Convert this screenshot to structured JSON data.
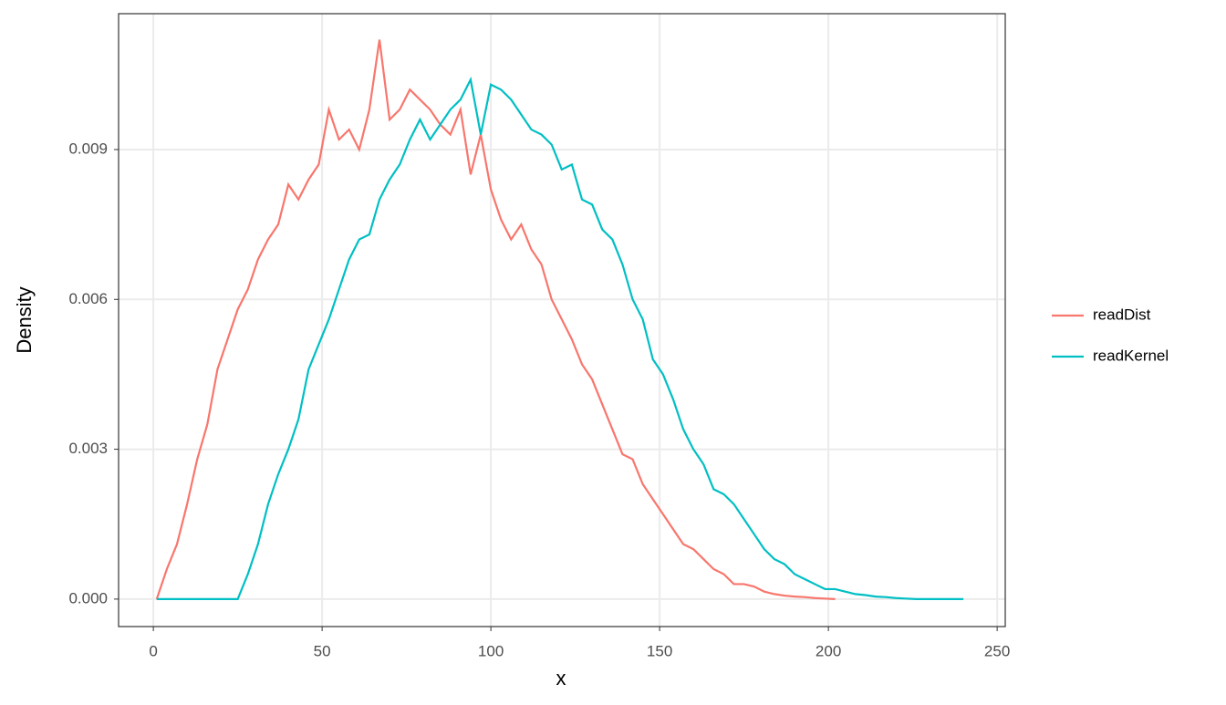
{
  "chart_data": {
    "type": "line",
    "x_label": "x",
    "y_label": "Density",
    "x": [
      1,
      4,
      7,
      10,
      13,
      16,
      19,
      22,
      25,
      28,
      31,
      34,
      37,
      40,
      43,
      46,
      49,
      52,
      55,
      58,
      61,
      64,
      67,
      70,
      73,
      76,
      79,
      82,
      85,
      88,
      91,
      94,
      97,
      100,
      103,
      106,
      109,
      112,
      115,
      118,
      121,
      124,
      127,
      130,
      133,
      136,
      139,
      142,
      145,
      148,
      151,
      154,
      157,
      160,
      163,
      166,
      169,
      172,
      175,
      178,
      181,
      184,
      187,
      190,
      193,
      196,
      199,
      202,
      205,
      208,
      211,
      214,
      217,
      220,
      223,
      226,
      229,
      232,
      235,
      238,
      240
    ],
    "series": [
      {
        "name": "readDist",
        "color": "#F8766D",
        "values": [
          0,
          0.0006,
          0.0011,
          0.0019,
          0.0028,
          0.0035,
          0.0046,
          0.0052,
          0.0058,
          0.0062,
          0.0068,
          0.0072,
          0.0075,
          0.0083,
          0.008,
          0.0084,
          0.0087,
          0.0098,
          0.0092,
          0.0094,
          0.009,
          0.0098,
          0.0112,
          0.0096,
          0.0098,
          0.0102,
          0.01,
          0.0098,
          0.0095,
          0.0093,
          0.0098,
          0.0085,
          0.0093,
          0.0082,
          0.0076,
          0.0072,
          0.0075,
          0.007,
          0.0067,
          0.006,
          0.0056,
          0.0052,
          0.0047,
          0.0044,
          0.0039,
          0.0034,
          0.0029,
          0.0028,
          0.0023,
          0.002,
          0.0017,
          0.0014,
          0.0011,
          0.001,
          0.0008,
          0.0006,
          0.0005,
          0.0003,
          0.0003,
          0.00025,
          0.00015,
          0.0001,
          7e-05,
          5e-05,
          4e-05,
          2e-05,
          1e-05,
          0,
          null,
          null,
          null,
          null,
          null,
          null,
          null,
          null,
          null,
          null,
          null,
          null,
          null
        ]
      },
      {
        "name": "readKernel",
        "color": "#00BFC4",
        "values": [
          0,
          0,
          0,
          0,
          0,
          0,
          0,
          0,
          0,
          0.0005,
          0.0011,
          0.0019,
          0.0025,
          0.003,
          0.0036,
          0.0046,
          0.0051,
          0.0056,
          0.0062,
          0.0068,
          0.0072,
          0.0073,
          0.008,
          0.0084,
          0.0087,
          0.0092,
          0.0096,
          0.0092,
          0.0095,
          0.0098,
          0.01,
          0.0104,
          0.0093,
          0.0103,
          0.0102,
          0.01,
          0.0097,
          0.0094,
          0.0093,
          0.0091,
          0.0086,
          0.0087,
          0.008,
          0.0079,
          0.0074,
          0.0072,
          0.0067,
          0.006,
          0.0056,
          0.0048,
          0.0045,
          0.004,
          0.0034,
          0.003,
          0.0027,
          0.0022,
          0.0021,
          0.0019,
          0.0016,
          0.0013,
          0.001,
          0.0008,
          0.0007,
          0.0005,
          0.0004,
          0.0003,
          0.0002,
          0.0002,
          0.00015,
          0.0001,
          8e-05,
          5e-05,
          4e-05,
          2e-05,
          1e-05,
          0,
          0,
          0,
          0,
          0,
          0
        ]
      }
    ],
    "xlim": [
      -10.3,
      252.4
    ],
    "ylim": [
      -0.00055,
      0.01172
    ],
    "xticks": [
      0,
      50,
      100,
      150,
      200,
      250
    ],
    "yticks": [
      {
        "value": 0,
        "label": "0.000"
      },
      0.003,
      0.006,
      0.009
    ],
    "grid": true,
    "legend": "right"
  }
}
